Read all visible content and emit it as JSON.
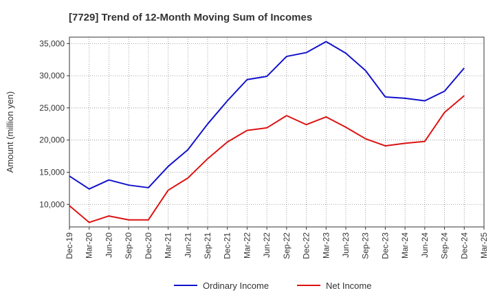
{
  "chart_data": {
    "type": "line",
    "title": "[7729]  Trend of 12-Month Moving Sum of Incomes",
    "xlabel": "",
    "ylabel": "Amount (million yen)",
    "ylim": [
      6500,
      36000
    ],
    "yticks": [
      10000,
      15000,
      20000,
      25000,
      30000,
      35000
    ],
    "ytick_labels": [
      "10,000",
      "15,000",
      "20,000",
      "25,000",
      "30,000",
      "35,000"
    ],
    "grid": true,
    "legend_position": "bottom-center",
    "categories": [
      "Dec-19",
      "Mar-20",
      "Jun-20",
      "Sep-20",
      "Dec-20",
      "Mar-21",
      "Jun-21",
      "Sep-21",
      "Dec-21",
      "Mar-22",
      "Jun-22",
      "Sep-22",
      "Dec-22",
      "Mar-23",
      "Jun-23",
      "Sep-23",
      "Dec-23",
      "Mar-24",
      "Jun-24",
      "Sep-24",
      "Dec-24",
      "Mar-25"
    ],
    "series": [
      {
        "name": "Ordinary Income",
        "color": "#1111cc",
        "values": [
          14400,
          12400,
          13800,
          13000,
          12600,
          15900,
          18500,
          22500,
          26100,
          29400,
          29900,
          33000,
          33600,
          35300,
          33500,
          30800,
          26700,
          26500,
          26100,
          27600,
          31200,
          null
        ]
      },
      {
        "name": "Net Income",
        "color": "#dd1111",
        "values": [
          9800,
          7200,
          8200,
          7600,
          7600,
          12200,
          14100,
          17100,
          19700,
          21500,
          21900,
          23800,
          22400,
          23600,
          22000,
          20200,
          19100,
          19500,
          19800,
          24300,
          26900,
          null
        ]
      }
    ]
  }
}
